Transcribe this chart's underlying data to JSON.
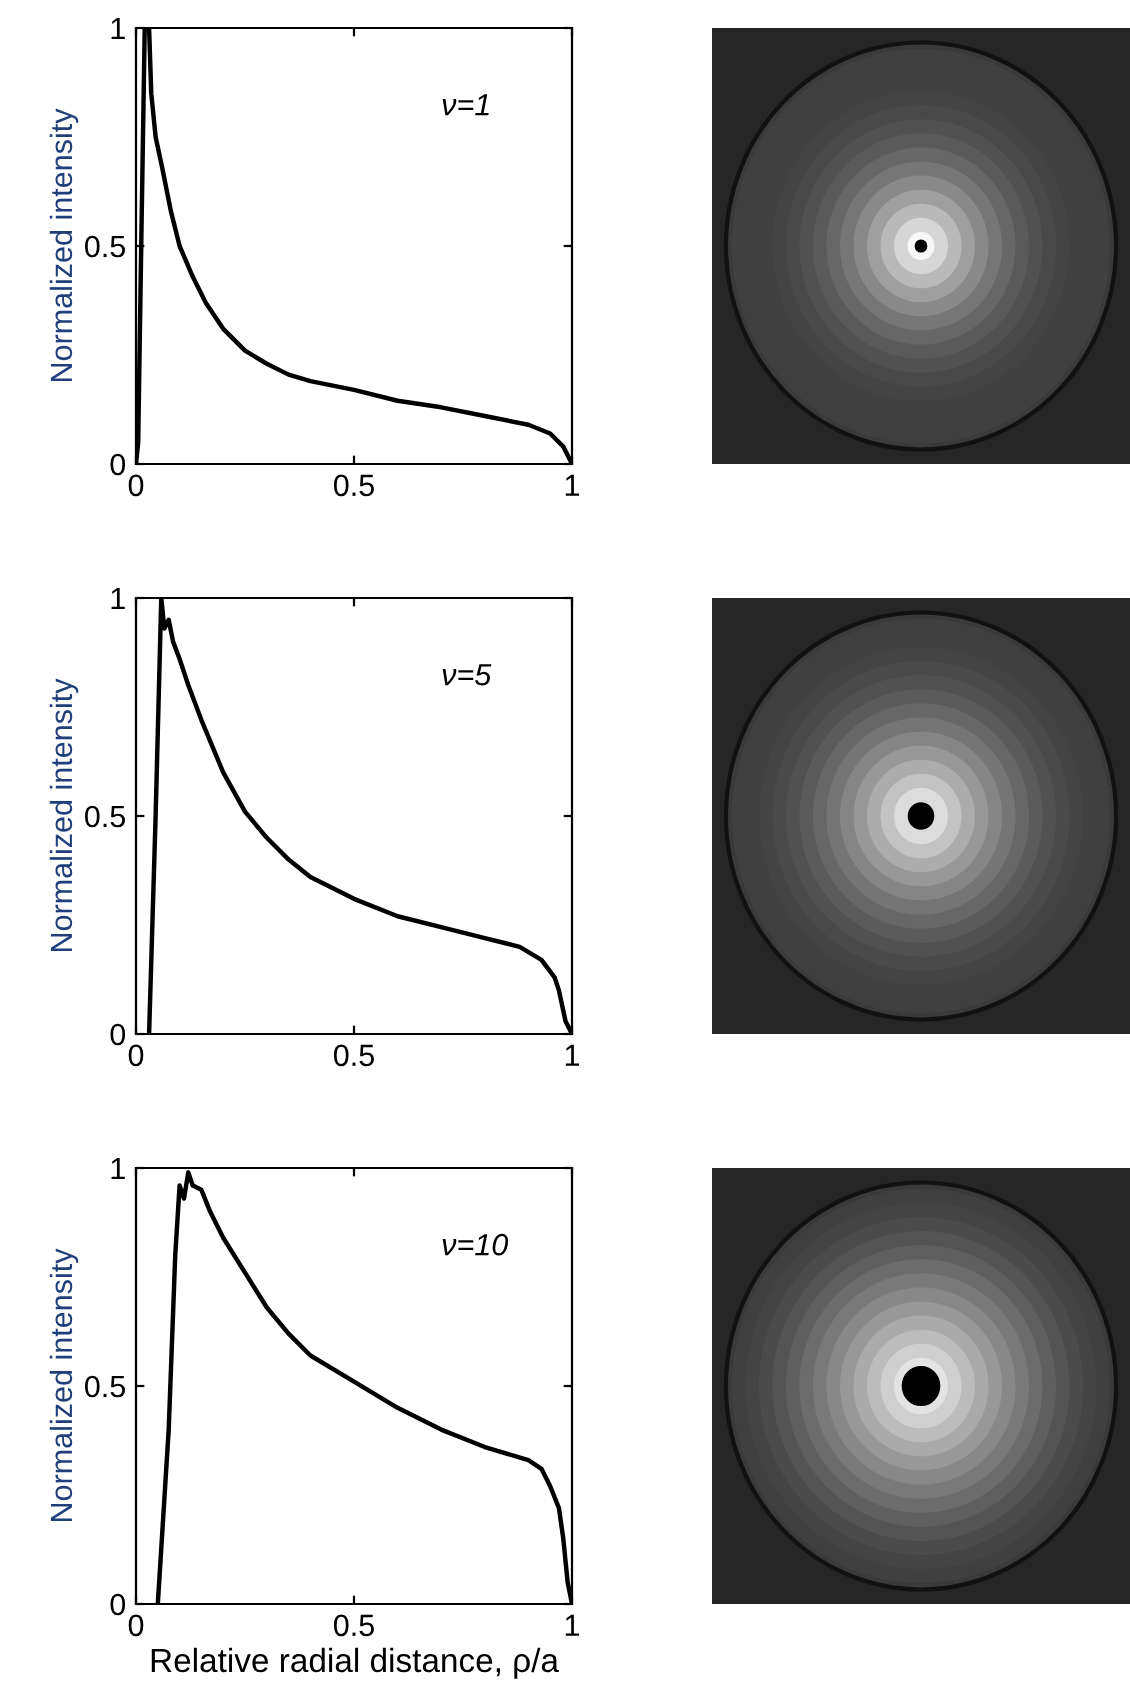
{
  "chart_data": [
    {
      "type": "line",
      "ylabel": "Normalized intensity",
      "annotations": [
        "ν=1"
      ],
      "xlim": [
        0,
        1
      ],
      "ylim": [
        0,
        1
      ],
      "xticks": [
        0,
        0.5,
        1
      ],
      "yticks": [
        0,
        0.5,
        1
      ],
      "grid": false,
      "legend": false,
      "marker": "none",
      "line_style": "solid",
      "series": [
        {
          "color": "#000000",
          "x": [
            0,
            0.005,
            0.012,
            0.02,
            0.03,
            0.035,
            0.045,
            0.06,
            0.08,
            0.1,
            0.13,
            0.16,
            0.2,
            0.25,
            0.3,
            0.35,
            0.4,
            0.5,
            0.6,
            0.7,
            0.8,
            0.9,
            0.95,
            0.98,
            1.0
          ],
          "values": [
            0,
            0.05,
            0.5,
            1.0,
            1.0,
            0.85,
            0.75,
            0.68,
            0.58,
            0.5,
            0.43,
            0.37,
            0.31,
            0.26,
            0.23,
            0.205,
            0.19,
            0.17,
            0.145,
            0.13,
            0.11,
            0.09,
            0.07,
            0.04,
            0
          ]
        }
      ]
    },
    {
      "type": "line",
      "ylabel": "Normalized intensity",
      "annotations": [
        "ν=5"
      ],
      "xlim": [
        0,
        1
      ],
      "ylim": [
        0,
        1
      ],
      "xticks": [
        0,
        0.5,
        1
      ],
      "yticks": [
        0,
        0.5,
        1
      ],
      "grid": false,
      "legend": false,
      "marker": "none",
      "line_style": "solid",
      "series": [
        {
          "color": "#000000",
          "x": [
            0.03,
            0.045,
            0.058,
            0.065,
            0.075,
            0.085,
            0.1,
            0.12,
            0.15,
            0.2,
            0.25,
            0.3,
            0.35,
            0.4,
            0.5,
            0.6,
            0.7,
            0.8,
            0.88,
            0.93,
            0.96,
            0.97,
            0.985,
            1.0
          ],
          "values": [
            0,
            0.5,
            1.0,
            0.93,
            0.95,
            0.9,
            0.86,
            0.8,
            0.72,
            0.6,
            0.51,
            0.45,
            0.4,
            0.36,
            0.31,
            0.27,
            0.245,
            0.22,
            0.2,
            0.17,
            0.13,
            0.1,
            0.03,
            0
          ]
        }
      ]
    },
    {
      "type": "line",
      "xlabel": "Relative radial distance, ρ/a",
      "ylabel": "Normalized intensity",
      "annotations": [
        "ν=10"
      ],
      "xlim": [
        0,
        1
      ],
      "ylim": [
        0,
        1
      ],
      "xticks": [
        0,
        0.5,
        1
      ],
      "yticks": [
        0,
        0.5,
        1
      ],
      "grid": false,
      "legend": false,
      "marker": "none",
      "line_style": "solid",
      "series": [
        {
          "color": "#000000",
          "x": [
            0.05,
            0.075,
            0.09,
            0.1,
            0.11,
            0.12,
            0.13,
            0.15,
            0.17,
            0.2,
            0.25,
            0.3,
            0.35,
            0.4,
            0.5,
            0.6,
            0.7,
            0.8,
            0.9,
            0.93,
            0.95,
            0.97,
            0.98,
            0.99,
            1.0
          ],
          "values": [
            0,
            0.4,
            0.8,
            0.96,
            0.93,
            0.99,
            0.96,
            0.95,
            0.9,
            0.84,
            0.76,
            0.68,
            0.62,
            0.57,
            0.51,
            0.45,
            0.4,
            0.36,
            0.33,
            0.31,
            0.27,
            0.22,
            0.15,
            0.05,
            0
          ]
        }
      ]
    }
  ]
}
